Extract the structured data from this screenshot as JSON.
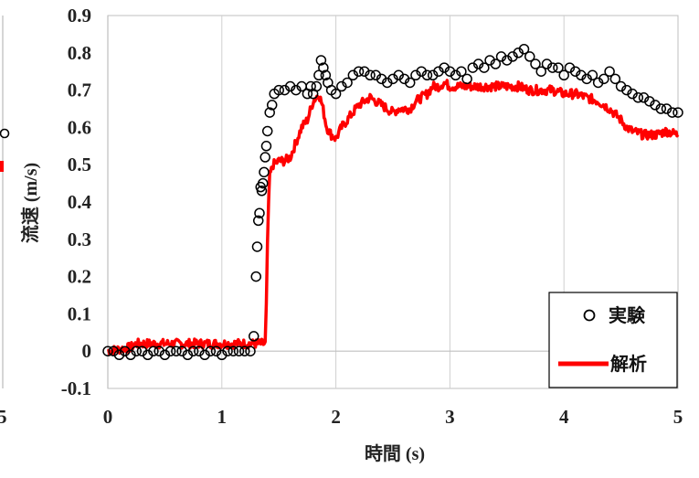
{
  "chart_data": {
    "type": "line",
    "title": "",
    "xlabel": "時間 (s)",
    "ylabel": "流速 (m/s)",
    "xlim": [
      0,
      5
    ],
    "ylim": [
      -0.1,
      0.9
    ],
    "x_ticks": [
      "0",
      "1",
      "2",
      "3",
      "4",
      "5"
    ],
    "y_ticks": [
      "-0.1",
      "0",
      "0.1",
      "0.2",
      "0.3",
      "0.4",
      "0.5",
      "0.6",
      "0.7",
      "0.8",
      "0.9"
    ],
    "grid": "vertical",
    "legend_position": "bottom-right",
    "left_panel_fragment": {
      "tick_label": "5"
    },
    "series": [
      {
        "name": "実験",
        "style": "markers",
        "marker": "open-circle",
        "color": "#000000",
        "points": [
          [
            0.0,
            0.0
          ],
          [
            0.05,
            0.0
          ],
          [
            0.1,
            -0.01
          ],
          [
            0.15,
            0.0
          ],
          [
            0.2,
            -0.01
          ],
          [
            0.25,
            0.0
          ],
          [
            0.3,
            0.0
          ],
          [
            0.35,
            -0.01
          ],
          [
            0.4,
            0.0
          ],
          [
            0.45,
            0.0
          ],
          [
            0.5,
            -0.01
          ],
          [
            0.55,
            0.0
          ],
          [
            0.6,
            0.0
          ],
          [
            0.65,
            0.0
          ],
          [
            0.7,
            -0.01
          ],
          [
            0.75,
            0.0
          ],
          [
            0.8,
            0.0
          ],
          [
            0.85,
            -0.01
          ],
          [
            0.9,
            0.0
          ],
          [
            0.95,
            0.0
          ],
          [
            1.0,
            -0.01
          ],
          [
            1.05,
            0.0
          ],
          [
            1.1,
            0.0
          ],
          [
            1.15,
            0.0
          ],
          [
            1.2,
            0.0
          ],
          [
            1.25,
            0.0
          ],
          [
            1.28,
            0.04
          ],
          [
            1.3,
            0.2
          ],
          [
            1.31,
            0.28
          ],
          [
            1.32,
            0.35
          ],
          [
            1.33,
            0.37
          ],
          [
            1.34,
            0.44
          ],
          [
            1.35,
            0.43
          ],
          [
            1.36,
            0.45
          ],
          [
            1.37,
            0.48
          ],
          [
            1.38,
            0.52
          ],
          [
            1.39,
            0.55
          ],
          [
            1.4,
            0.59
          ],
          [
            1.42,
            0.64
          ],
          [
            1.44,
            0.66
          ],
          [
            1.46,
            0.69
          ],
          [
            1.5,
            0.7
          ],
          [
            1.55,
            0.7
          ],
          [
            1.6,
            0.71
          ],
          [
            1.65,
            0.7
          ],
          [
            1.7,
            0.71
          ],
          [
            1.75,
            0.69
          ],
          [
            1.78,
            0.71
          ],
          [
            1.8,
            0.69
          ],
          [
            1.83,
            0.71
          ],
          [
            1.85,
            0.74
          ],
          [
            1.87,
            0.78
          ],
          [
            1.89,
            0.76
          ],
          [
            1.91,
            0.74
          ],
          [
            1.93,
            0.72
          ],
          [
            1.96,
            0.7
          ],
          [
            2.0,
            0.69
          ],
          [
            2.05,
            0.71
          ],
          [
            2.1,
            0.72
          ],
          [
            2.15,
            0.74
          ],
          [
            2.2,
            0.75
          ],
          [
            2.25,
            0.75
          ],
          [
            2.3,
            0.74
          ],
          [
            2.35,
            0.74
          ],
          [
            2.4,
            0.73
          ],
          [
            2.45,
            0.72
          ],
          [
            2.5,
            0.73
          ],
          [
            2.55,
            0.74
          ],
          [
            2.6,
            0.73
          ],
          [
            2.65,
            0.72
          ],
          [
            2.7,
            0.74
          ],
          [
            2.75,
            0.75
          ],
          [
            2.8,
            0.74
          ],
          [
            2.85,
            0.74
          ],
          [
            2.9,
            0.75
          ],
          [
            2.95,
            0.76
          ],
          [
            3.0,
            0.75
          ],
          [
            3.05,
            0.74
          ],
          [
            3.1,
            0.75
          ],
          [
            3.15,
            0.73
          ],
          [
            3.2,
            0.76
          ],
          [
            3.25,
            0.77
          ],
          [
            3.3,
            0.76
          ],
          [
            3.35,
            0.78
          ],
          [
            3.4,
            0.77
          ],
          [
            3.45,
            0.79
          ],
          [
            3.5,
            0.78
          ],
          [
            3.55,
            0.79
          ],
          [
            3.6,
            0.8
          ],
          [
            3.65,
            0.81
          ],
          [
            3.7,
            0.79
          ],
          [
            3.75,
            0.77
          ],
          [
            3.8,
            0.75
          ],
          [
            3.85,
            0.77
          ],
          [
            3.9,
            0.76
          ],
          [
            3.95,
            0.76
          ],
          [
            4.0,
            0.74
          ],
          [
            4.05,
            0.76
          ],
          [
            4.1,
            0.75
          ],
          [
            4.15,
            0.74
          ],
          [
            4.2,
            0.73
          ],
          [
            4.25,
            0.74
          ],
          [
            4.3,
            0.72
          ],
          [
            4.35,
            0.73
          ],
          [
            4.4,
            0.75
          ],
          [
            4.45,
            0.73
          ],
          [
            4.5,
            0.71
          ],
          [
            4.55,
            0.7
          ],
          [
            4.6,
            0.69
          ],
          [
            4.65,
            0.68
          ],
          [
            4.7,
            0.68
          ],
          [
            4.75,
            0.67
          ],
          [
            4.8,
            0.66
          ],
          [
            4.85,
            0.65
          ],
          [
            4.9,
            0.65
          ],
          [
            4.95,
            0.64
          ],
          [
            5.0,
            0.64
          ]
        ]
      },
      {
        "name": "解析",
        "style": "line",
        "color": "#ff0000",
        "points": [
          [
            0.0,
            0.0
          ],
          [
            0.2,
            0.01
          ],
          [
            0.25,
            0.02
          ],
          [
            0.5,
            0.02
          ],
          [
            0.8,
            0.02
          ],
          [
            1.0,
            0.02
          ],
          [
            1.2,
            0.02
          ],
          [
            1.35,
            0.02
          ],
          [
            1.38,
            0.02
          ],
          [
            1.39,
            0.12
          ],
          [
            1.4,
            0.28
          ],
          [
            1.41,
            0.4
          ],
          [
            1.42,
            0.47
          ],
          [
            1.45,
            0.5
          ],
          [
            1.5,
            0.51
          ],
          [
            1.55,
            0.51
          ],
          [
            1.6,
            0.52
          ],
          [
            1.65,
            0.56
          ],
          [
            1.7,
            0.6
          ],
          [
            1.75,
            0.62
          ],
          [
            1.8,
            0.67
          ],
          [
            1.85,
            0.69
          ],
          [
            1.88,
            0.66
          ],
          [
            1.92,
            0.6
          ],
          [
            1.96,
            0.58
          ],
          [
            2.0,
            0.57
          ],
          [
            2.05,
            0.6
          ],
          [
            2.1,
            0.62
          ],
          [
            2.15,
            0.64
          ],
          [
            2.2,
            0.66
          ],
          [
            2.25,
            0.67
          ],
          [
            2.3,
            0.68
          ],
          [
            2.35,
            0.67
          ],
          [
            2.4,
            0.66
          ],
          [
            2.45,
            0.65
          ],
          [
            2.5,
            0.64
          ],
          [
            2.55,
            0.65
          ],
          [
            2.6,
            0.65
          ],
          [
            2.65,
            0.65
          ],
          [
            2.7,
            0.67
          ],
          [
            2.75,
            0.68
          ],
          [
            2.8,
            0.69
          ],
          [
            2.85,
            0.71
          ],
          [
            2.9,
            0.71
          ],
          [
            2.95,
            0.72
          ],
          [
            3.0,
            0.71
          ],
          [
            3.1,
            0.71
          ],
          [
            3.2,
            0.71
          ],
          [
            3.3,
            0.71
          ],
          [
            3.4,
            0.71
          ],
          [
            3.5,
            0.71
          ],
          [
            3.6,
            0.71
          ],
          [
            3.7,
            0.7
          ],
          [
            3.8,
            0.7
          ],
          [
            3.9,
            0.7
          ],
          [
            4.0,
            0.69
          ],
          [
            4.1,
            0.69
          ],
          [
            4.2,
            0.68
          ],
          [
            4.3,
            0.67
          ],
          [
            4.4,
            0.65
          ],
          [
            4.5,
            0.62
          ],
          [
            4.55,
            0.6
          ],
          [
            4.6,
            0.59
          ],
          [
            4.7,
            0.58
          ],
          [
            4.8,
            0.58
          ],
          [
            4.9,
            0.59
          ],
          [
            5.0,
            0.58
          ]
        ]
      }
    ]
  }
}
